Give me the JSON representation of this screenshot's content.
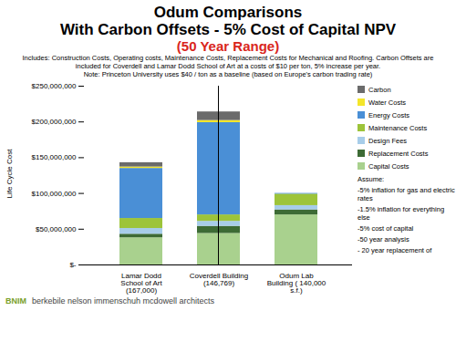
{
  "chart_data": {
    "type": "bar",
    "stacked": true,
    "title": "Odum Comparisons",
    "subtitle": [
      "With Carbon Offsets - 5% Cost of Capital NPV",
      "(50 Year Range)"
    ],
    "notes": [
      "Includes: Construction Costs, Operating costs, Maintenance Costs, Replacement Costs for Mechanical and Roofing. Carbon Offsets are included for Coverdell and Lamar Dodd School of Art at a costs of $10 per ton, 5% increase per year.",
      "Note: Princeton University uses $40 / ton as a baseline (based on Europe's carbon trading rate)"
    ],
    "ylabel": "Life Cycle Cost",
    "categories": [
      "Lamar Dodd School of Art\n(167,000)",
      "Coverdell Building (146,769)",
      "Odum Lab Building ( 140,000 s.f.)"
    ],
    "series": [
      {
        "name": "Capital Costs",
        "color": "#a9d18e",
        "values": [
          38000000,
          44000000,
          70000000
        ]
      },
      {
        "name": "Replacement Costs",
        "color": "#3d6b35",
        "values": [
          5000000,
          10000000,
          7000000
        ]
      },
      {
        "name": "Design Fees",
        "color": "#a7cde9",
        "values": [
          8000000,
          7000000,
          6000000
        ]
      },
      {
        "name": "Maintenance Costs",
        "color": "#9dc43a",
        "values": [
          14000000,
          9000000,
          16000000
        ]
      },
      {
        "name": "Energy Costs",
        "color": "#4a8fd6",
        "values": [
          70000000,
          129000000,
          1000000
        ]
      },
      {
        "name": "Water Costs",
        "color": "#f4e62a",
        "values": [
          2000000,
          3000000,
          0
        ]
      },
      {
        "name": "Carbon",
        "color": "#6b6b6b",
        "values": [
          6000000,
          12000000,
          0
        ]
      }
    ],
    "ylim": [
      0,
      250000000
    ],
    "yticks": [
      {
        "value": 0,
        "label": "$-"
      },
      {
        "value": 50000000,
        "label": "$50,000,000"
      },
      {
        "value": 100000000,
        "label": "$100,000,000"
      },
      {
        "value": 150000000,
        "label": "$150,000,000"
      },
      {
        "value": 200000000,
        "label": "$200,000,000"
      },
      {
        "value": 250000000,
        "label": "$250,000,000"
      }
    ],
    "grid": false,
    "legend": "right",
    "annotations": [
      "Assume:",
      "-5% inflation for gas and electric rates",
      "-1.5% inflation for everything else",
      "-5% cost of capital",
      "-50 year analysis",
      "- 20 year replacement of"
    ],
    "footer": [
      "BNIM",
      "berkebile nelson immenschuh mcdowell architects"
    ]
  }
}
